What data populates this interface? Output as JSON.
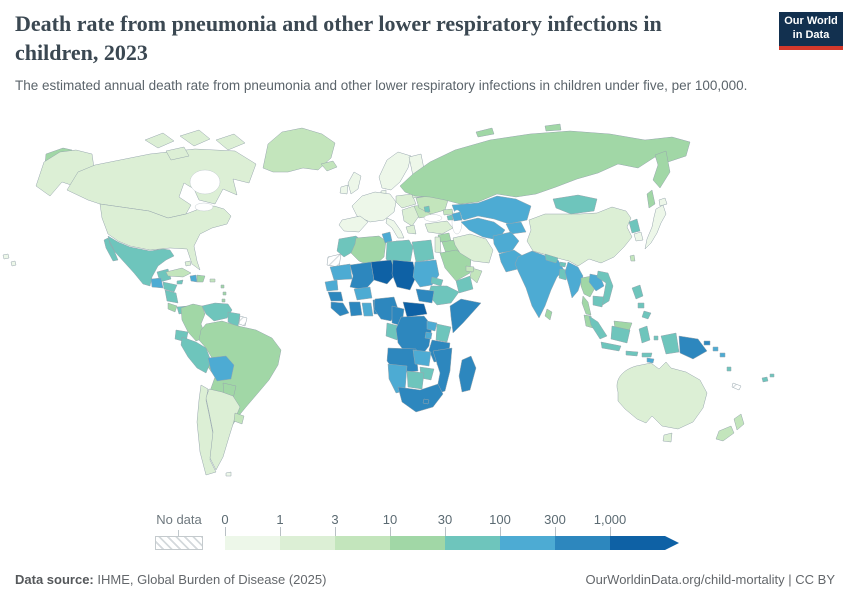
{
  "header": {
    "title_line1": "Death rate from pneumonia and other lower respiratory infections in",
    "title_line2": "children, 2023",
    "subtitle": "The estimated annual death rate from pneumonia and other lower respiratory infections in children under five, per 100,000.",
    "logo": {
      "line1": "Our World",
      "line2": "in Data",
      "bg": "#12304f",
      "accent": "#d4392c"
    }
  },
  "legend": {
    "no_data_label": "No data"
  },
  "footer": {
    "source_label": "Data source:",
    "source_text": " IHME, Global Burden of Disease (2025)",
    "right_text": "OurWorldinData.org/child-mortality | CC BY"
  },
  "chart_data": {
    "type": "choropleth",
    "title": "Death rate from pneumonia and other lower respiratory infections in children, 2023",
    "subtitle": "The estimated annual death rate from pneumonia and other lower respiratory infections in children under five, per 100,000.",
    "year": 2023,
    "unit": "deaths per 100,000 children under five",
    "source": "IHME, Global Burden of Disease (2025)",
    "legend_position": "bottom",
    "legend_bins": [
      {
        "label": "0",
        "range": "0-1",
        "color": "#edf7e9"
      },
      {
        "label": "1",
        "range": "1-3",
        "color": "#dcefd5"
      },
      {
        "label": "3",
        "range": "3-10",
        "color": "#c3e5bc"
      },
      {
        "label": "10",
        "range": "10-30",
        "color": "#a1d7a6"
      },
      {
        "label": "30",
        "range": "30-100",
        "color": "#6ec5bc"
      },
      {
        "label": "100",
        "range": "100-300",
        "color": "#4dabd3"
      },
      {
        "label": "300",
        "range": "300-1000",
        "color": "#2d87be"
      },
      {
        "label": "1,000",
        "range": ">1000",
        "color": "#0e61a5"
      }
    ],
    "no_data_color": "hatch",
    "regions": {
      "canada": "1-3",
      "alaska": "1-3",
      "chukotka": "10-30",
      "arctic_islands": "1-3",
      "greenland": "3-10",
      "iceland": "3-10",
      "usa": "1-3",
      "hawaii": "0-1",
      "mexico": "30-100",
      "guatemala": "100-300",
      "honduras": "30-100",
      "nicaragua": "30-100",
      "costa_rica": "10-30",
      "panama": "30-100",
      "cuba": "3-10",
      "jamaica": "30-100",
      "haiti": "100-300",
      "dominican_republic": "10-30",
      "bahamas": "1-3",
      "puerto_rico": "3-10",
      "lesser_antilles": "10-30",
      "trinidad": "30-100",
      "colombia": "10-30",
      "venezuela": "30-100",
      "guyana_suriname": "30-100",
      "french_guiana": "no-data",
      "ecuador": "30-100",
      "peru": "30-100",
      "brazil": "10-30",
      "bolivia": "100-300",
      "paraguay": "10-30",
      "uruguay": "3-10",
      "argentina": "1-3",
      "chile": "1-3",
      "falkland": "0-1",
      "uk": "0-1",
      "ireland": "0-1",
      "europe_west": "0-1",
      "norway_sweden": "0-1",
      "finland": "0-1",
      "denmark": "0-1",
      "iberia": "0-1",
      "italy": "0-1",
      "poland_czech": "1-3",
      "baltics_belarus": "1-3",
      "balkans": "1-3",
      "greece": "1-3",
      "romania_bulgaria": "3-10",
      "ukraine": "3-10",
      "moldova": "30-100",
      "russia": "10-30",
      "kamchatka": "10-30",
      "sakhalin": "10-30",
      "russia_arctic": "10-30",
      "kazakhstan": "100-300",
      "uzbekistan_turkmenistan": "100-300",
      "kyrgyzstan_tajikistan": "100-300",
      "azerbaijan": "100-300",
      "georgia": "3-10",
      "armenia": "30-100",
      "turkey": "1-3",
      "syria": "10-30",
      "lebanon_israel_jordan": "1-3",
      "iraq": "10-30",
      "saudi_arabia": "10-30",
      "yemen": "30-100",
      "oman": "3-10",
      "uae_qatar": "3-10",
      "iran": "1-3",
      "afghanistan": "100-300",
      "pakistan": "100-300",
      "india": "100-300",
      "nepal": "30-100",
      "bhutan": "30-100",
      "bangladesh": "30-100",
      "sri_lanka": "10-30",
      "china": "1-3",
      "mongolia": "30-100",
      "north_korea": "30-100",
      "south_korea": "0-1",
      "japan": "0-1",
      "taiwan": "3-10",
      "myanmar": "100-300",
      "thailand": "10-30",
      "laos": "100-300",
      "vietnam": "30-100",
      "cambodia": "30-100",
      "malaysia": "10-30",
      "indonesia": "30-100",
      "west_papua": "30-100",
      "philippines": "30-100",
      "timor": "100-300",
      "papua_new_guinea": "300-1000",
      "solomon": "100-300",
      "vanuatu": "30-100",
      "fiji": "30-100",
      "new_caledonia": "no-data",
      "australia": "1-3",
      "tasmania": "1-3",
      "new_zealand": "3-10",
      "morocco": "30-100",
      "western_sahara": "no-data",
      "algeria": "10-30",
      "tunisia": "100-300",
      "libya": "30-100",
      "egypt": "30-100",
      "mauritania": "100-300",
      "senegal_gambia": "100-300",
      "guinea": "300-1000",
      "sierra_leone_liberia": "300-1000",
      "mali": "300-1000",
      "burkina_faso": "100-300",
      "cote_divoire": "300-1000",
      "ghana": "100-300",
      "togo_benin": "300-1000",
      "niger": ">1000",
      "nigeria": "300-1000",
      "chad": ">1000",
      "sudan": "100-300",
      "eritrea": "30-100",
      "djibouti": "100-300",
      "ethiopia": "30-100",
      "somalia": "300-1000",
      "cameroon": "300-1000",
      "central_african_republic": ">1000",
      "south_sudan": "300-1000",
      "gabon_congo": "30-100",
      "drc": "300-1000",
      "uganda": "100-300",
      "kenya": "30-100",
      "rwanda_burundi": "100-300",
      "tanzania": "300-1000",
      "angola": "300-1000",
      "zambia": "100-300",
      "malawi": "30-100",
      "mozambique": "300-1000",
      "zimbabwe": "30-100",
      "botswana": "30-100",
      "namibia": "100-300",
      "south_africa": "300-1000",
      "lesotho": "300-1000",
      "madagascar": "300-1000"
    }
  }
}
